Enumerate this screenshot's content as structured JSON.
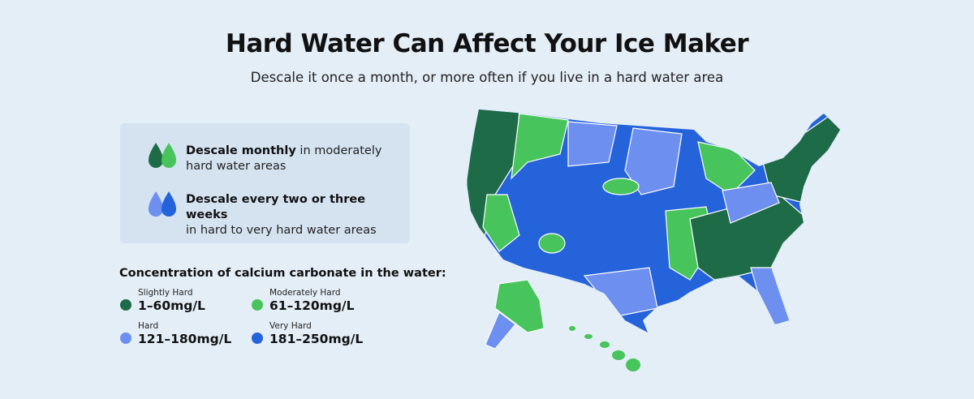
{
  "header": {
    "title": "Hard Water Can Affect Your Ice Maker",
    "subtitle": "Descale it once a month, or more often if you live in a hard water area"
  },
  "notes": [
    {
      "bold": "Descale monthly",
      "line1": "in moderately",
      "line2": "hard water areas"
    },
    {
      "bold": "Descale every two or three weeks",
      "line1": "",
      "line2": "in hard to very hard water areas"
    }
  ],
  "legend": {
    "title": "Concentration of calcium carbonate in the water:",
    "items": [
      {
        "name": "Slightly Hard",
        "range": "1–60mg/L",
        "color": "#1e6b47"
      },
      {
        "name": "Moderately Hard",
        "range": "61–120mg/L",
        "color": "#48c45c"
      },
      {
        "name": "Hard",
        "range": "121–180mg/L",
        "color": "#6d8ff0"
      },
      {
        "name": "Very Hard",
        "range": "181–250mg/L",
        "color": "#2563db"
      }
    ]
  }
}
